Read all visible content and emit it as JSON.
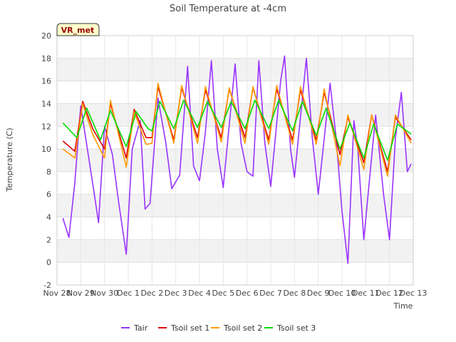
{
  "chart_data": {
    "type": "line",
    "title": "Soil Temperature at -4cm",
    "xlabel": "Time",
    "ylabel": "Temperature (C)",
    "xlim": [
      "2024-11-28",
      "2024-12-13"
    ],
    "ylim": [
      -2,
      20
    ],
    "yticks": [
      -2,
      0,
      2,
      4,
      6,
      8,
      10,
      12,
      14,
      16,
      18,
      20
    ],
    "xtick_labels": [
      "Nov 28",
      "Nov 29",
      "Nov 30",
      "Dec 1",
      "Dec 2",
      "Dec 3",
      "Dec 4",
      "Dec 5",
      "Dec 6",
      "Dec 7",
      "Dec 8",
      "Dec 9",
      "Dec 10",
      "Dec 11",
      "Dec 12",
      "Dec 13"
    ],
    "site_label": "VR_met",
    "grid": true,
    "legend_position": "bottom-center",
    "series": [
      {
        "name": "Tair",
        "color": "#9933ff",
        "points": [
          [
            "2024-11-28T06:00",
            3.9
          ],
          [
            "2024-11-28T12:00",
            2.2
          ],
          [
            "2024-11-28T18:00",
            7.0
          ],
          [
            "2024-11-29T00:00",
            13.8
          ],
          [
            "2024-11-29T12:00",
            7.0
          ],
          [
            "2024-11-29T18:00",
            3.5
          ],
          [
            "2024-11-30T00:00",
            12.0
          ],
          [
            "2024-11-30T08:00",
            9.5
          ],
          [
            "2024-11-30T14:00",
            5.5
          ],
          [
            "2024-11-30T22:00",
            0.7
          ],
          [
            "2024-12-01T04:00",
            10.0
          ],
          [
            "2024-12-01T12:00",
            12.5
          ],
          [
            "2024-12-01T17:00",
            4.7
          ],
          [
            "2024-12-01T22:00",
            5.2
          ],
          [
            "2024-12-02T06:00",
            14.5
          ],
          [
            "2024-12-02T14:00",
            10.5
          ],
          [
            "2024-12-02T20:00",
            6.5
          ],
          [
            "2024-12-03T04:00",
            7.7
          ],
          [
            "2024-12-03T12:00",
            17.3
          ],
          [
            "2024-12-03T18:00",
            8.5
          ],
          [
            "2024-12-04T00:00",
            7.2
          ],
          [
            "2024-12-04T06:00",
            11.5
          ],
          [
            "2024-12-04T12:00",
            17.8
          ],
          [
            "2024-12-04T18:00",
            10.0
          ],
          [
            "2024-12-05T00:00",
            6.6
          ],
          [
            "2024-12-05T12:00",
            17.5
          ],
          [
            "2024-12-05T18:00",
            10.5
          ],
          [
            "2024-12-06T00:00",
            8.0
          ],
          [
            "2024-12-06T06:00",
            7.6
          ],
          [
            "2024-12-06T12:00",
            17.8
          ],
          [
            "2024-12-06T18:00",
            10.5
          ],
          [
            "2024-12-07T00:00",
            6.7
          ],
          [
            "2024-12-07T10:00",
            16.0
          ],
          [
            "2024-12-07T14:00",
            18.2
          ],
          [
            "2024-12-07T20:00",
            10.0
          ],
          [
            "2024-12-08T00:00",
            7.5
          ],
          [
            "2024-12-08T12:00",
            18.0
          ],
          [
            "2024-12-08T18:00",
            11.0
          ],
          [
            "2024-12-09T00:00",
            6.0
          ],
          [
            "2024-12-09T12:00",
            15.8
          ],
          [
            "2024-12-09T18:00",
            11.0
          ],
          [
            "2024-12-10T00:00",
            4.5
          ],
          [
            "2024-12-10T06:00",
            -0.1
          ],
          [
            "2024-12-10T12:00",
            12.5
          ],
          [
            "2024-12-10T16:00",
            10.0
          ],
          [
            "2024-12-10T22:00",
            2.0
          ],
          [
            "2024-12-11T04:00",
            7.5
          ],
          [
            "2024-12-11T10:00",
            13.0
          ],
          [
            "2024-12-11T18:00",
            6.0
          ],
          [
            "2024-12-12T00:00",
            2.0
          ],
          [
            "2024-12-12T06:00",
            11.0
          ],
          [
            "2024-12-12T12:00",
            15.0
          ],
          [
            "2024-12-12T18:00",
            8.0
          ],
          [
            "2024-12-12T22:00",
            8.7
          ]
        ]
      },
      {
        "name": "Tsoil set 1",
        "color": "#dd0000",
        "points": [
          [
            "2024-11-28T06:00",
            10.7
          ],
          [
            "2024-11-28T18:00",
            9.8
          ],
          [
            "2024-11-29T02:00",
            14.2
          ],
          [
            "2024-11-29T12:00",
            11.8
          ],
          [
            "2024-11-30T00:00",
            10.0
          ],
          [
            "2024-11-30T06:00",
            14.0
          ],
          [
            "2024-11-30T22:00",
            9.2
          ],
          [
            "2024-12-01T06:00",
            13.5
          ],
          [
            "2024-12-01T18:00",
            11.0
          ],
          [
            "2024-12-02T00:00",
            11.0
          ],
          [
            "2024-12-02T06:00",
            15.5
          ],
          [
            "2024-12-02T22:00",
            10.8
          ],
          [
            "2024-12-03T06:00",
            15.4
          ],
          [
            "2024-12-03T22:00",
            11.0
          ],
          [
            "2024-12-04T06:00",
            15.2
          ],
          [
            "2024-12-04T22:00",
            11.0
          ],
          [
            "2024-12-05T06:00",
            15.3
          ],
          [
            "2024-12-05T22:00",
            11.0
          ],
          [
            "2024-12-06T06:00",
            15.4
          ],
          [
            "2024-12-06T22:00",
            10.8
          ],
          [
            "2024-12-07T06:00",
            15.3
          ],
          [
            "2024-12-07T22:00",
            10.8
          ],
          [
            "2024-12-08T06:00",
            15.2
          ],
          [
            "2024-12-08T22:00",
            10.8
          ],
          [
            "2024-12-09T06:00",
            15.0
          ],
          [
            "2024-12-09T22:00",
            9.5
          ],
          [
            "2024-12-10T06:00",
            12.8
          ],
          [
            "2024-12-10T22:00",
            8.8
          ],
          [
            "2024-12-11T06:00",
            13.0
          ],
          [
            "2024-12-11T22:00",
            8.0
          ],
          [
            "2024-12-12T06:00",
            12.8
          ],
          [
            "2024-12-12T22:00",
            10.8
          ]
        ]
      },
      {
        "name": "Tsoil set 2",
        "color": "#ff9900",
        "points": [
          [
            "2024-11-28T06:00",
            10.0
          ],
          [
            "2024-11-28T18:00",
            9.2
          ],
          [
            "2024-11-29T02:00",
            14.0
          ],
          [
            "2024-11-29T12:00",
            11.3
          ],
          [
            "2024-11-30T00:00",
            9.2
          ],
          [
            "2024-11-30T06:00",
            14.3
          ],
          [
            "2024-11-30T22:00",
            8.4
          ],
          [
            "2024-12-01T06:00",
            13.3
          ],
          [
            "2024-12-01T18:00",
            10.4
          ],
          [
            "2024-12-02T00:00",
            10.5
          ],
          [
            "2024-12-02T06:00",
            15.8
          ],
          [
            "2024-12-02T22:00",
            10.5
          ],
          [
            "2024-12-03T06:00",
            15.6
          ],
          [
            "2024-12-03T22:00",
            10.5
          ],
          [
            "2024-12-04T06:00",
            15.5
          ],
          [
            "2024-12-04T22:00",
            10.6
          ],
          [
            "2024-12-05T06:00",
            15.4
          ],
          [
            "2024-12-05T22:00",
            10.5
          ],
          [
            "2024-12-06T06:00",
            15.5
          ],
          [
            "2024-12-06T22:00",
            10.4
          ],
          [
            "2024-12-07T06:00",
            15.6
          ],
          [
            "2024-12-07T22:00",
            10.4
          ],
          [
            "2024-12-08T06:00",
            15.5
          ],
          [
            "2024-12-08T22:00",
            10.4
          ],
          [
            "2024-12-09T06:00",
            15.3
          ],
          [
            "2024-12-09T22:00",
            8.5
          ],
          [
            "2024-12-10T06:00",
            13.0
          ],
          [
            "2024-12-10T22:00",
            8.2
          ],
          [
            "2024-12-11T06:00",
            13.0
          ],
          [
            "2024-12-11T22:00",
            7.6
          ],
          [
            "2024-12-12T06:00",
            13.0
          ],
          [
            "2024-12-12T22:00",
            10.5
          ]
        ]
      },
      {
        "name": "Tsoil set 3",
        "color": "#00dd00",
        "points": [
          [
            "2024-11-28T06:00",
            12.3
          ],
          [
            "2024-11-28T20:00",
            11.0
          ],
          [
            "2024-11-29T06:00",
            13.6
          ],
          [
            "2024-11-29T20:00",
            10.8
          ],
          [
            "2024-11-30T06:00",
            13.4
          ],
          [
            "2024-11-30T22:00",
            10.2
          ],
          [
            "2024-12-01T08:00",
            13.3
          ],
          [
            "2024-12-01T20:00",
            11.8
          ],
          [
            "2024-12-02T00:00",
            11.6
          ],
          [
            "2024-12-02T08:00",
            14.2
          ],
          [
            "2024-12-02T22:00",
            11.8
          ],
          [
            "2024-12-03T08:00",
            14.3
          ],
          [
            "2024-12-03T22:00",
            11.9
          ],
          [
            "2024-12-04T08:00",
            14.2
          ],
          [
            "2024-12-04T22:00",
            11.9
          ],
          [
            "2024-12-05T08:00",
            14.2
          ],
          [
            "2024-12-05T22:00",
            11.8
          ],
          [
            "2024-12-06T08:00",
            14.3
          ],
          [
            "2024-12-06T22:00",
            11.8
          ],
          [
            "2024-12-07T08:00",
            14.3
          ],
          [
            "2024-12-07T22:00",
            11.6
          ],
          [
            "2024-12-08T08:00",
            14.2
          ],
          [
            "2024-12-08T22:00",
            11.2
          ],
          [
            "2024-12-09T08:00",
            13.6
          ],
          [
            "2024-12-09T22:00",
            10.0
          ],
          [
            "2024-12-10T08:00",
            12.3
          ],
          [
            "2024-12-10T22:00",
            9.2
          ],
          [
            "2024-12-11T08:00",
            12.2
          ],
          [
            "2024-12-11T22:00",
            9.0
          ],
          [
            "2024-12-12T08:00",
            12.2
          ],
          [
            "2024-12-12T22:00",
            11.3
          ]
        ]
      }
    ]
  }
}
